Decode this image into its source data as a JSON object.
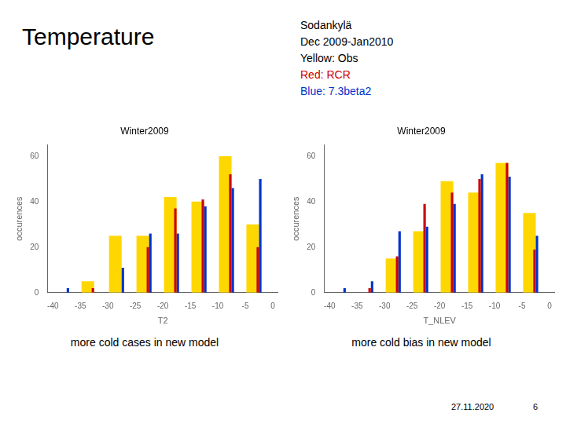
{
  "title": "Temperature",
  "annotations": [
    {
      "text": "Sodankylä"
    },
    {
      "text": "Dec 2009-Jan2010"
    },
    {
      "text": "Yellow: Obs"
    },
    {
      "text": "Red: RCR",
      "color": "#CC0000"
    },
    {
      "text": "Blue: 7.3beta2",
      "color": "#0033CC"
    }
  ],
  "footer": [
    "27.11.2020",
    "6"
  ],
  "chart_data": [
    {
      "type": "histogram",
      "title": "Winter2009",
      "subtitle": "more cold cases in new model",
      "xlabel": "T2",
      "ylabel": "occurences",
      "bins": [
        -40,
        -35,
        -30,
        -25,
        -20,
        -15,
        -10,
        -5,
        0
      ],
      "series": [
        {
          "color": "#FFD700",
          "values": [
            0,
            5,
            25,
            25,
            42,
            40,
            60,
            30
          ]
        },
        {
          "color": "#CC0000",
          "values": [
            0,
            2,
            0,
            20,
            37,
            41,
            52,
            20
          ]
        },
        {
          "color": "#0033CC",
          "values": [
            2,
            0,
            11,
            26,
            26,
            38,
            46,
            50
          ]
        }
      ],
      "xlim": [
        -41,
        1
      ],
      "ylim": [
        0,
        65
      ],
      "xticks": [
        -40,
        -35,
        -30,
        -25,
        -20,
        -15,
        -10,
        -5,
        0
      ],
      "yticks": [
        0,
        20,
        40,
        60
      ],
      "grid": false
    },
    {
      "type": "histogram",
      "title": "Winter2009",
      "subtitle": "more cold bias in new model",
      "xlabel": "T_NLEV",
      "ylabel": "occurences",
      "bins": [
        -40,
        -35,
        -30,
        -25,
        -20,
        -15,
        -10,
        -5,
        0
      ],
      "series": [
        {
          "color": "#FFD700",
          "values": [
            0,
            0,
            15,
            27,
            49,
            44,
            57,
            35
          ]
        },
        {
          "color": "#CC0000",
          "values": [
            0,
            2,
            16,
            39,
            44,
            50,
            57,
            19
          ]
        },
        {
          "color": "#0033CC",
          "values": [
            2,
            5,
            27,
            29,
            39,
            52,
            51,
            25
          ]
        }
      ],
      "xlim": [
        -41,
        1
      ],
      "ylim": [
        0,
        65
      ],
      "xticks": [
        -40,
        -35,
        -30,
        -25,
        -20,
        -15,
        -10,
        -5,
        0
      ],
      "yticks": [
        0,
        20,
        40,
        60
      ],
      "grid": false
    }
  ]
}
